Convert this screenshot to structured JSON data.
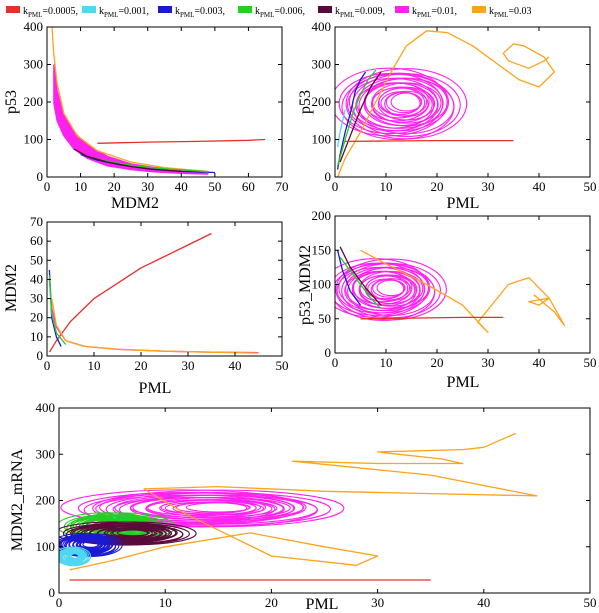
{
  "legend": [
    {
      "k": "k",
      "sub": "PML",
      "value": "=0.0005,",
      "color": "#e8302a"
    },
    {
      "k": "k",
      "sub": "PML",
      "value": "=0.001,",
      "color": "#4fd8f0"
    },
    {
      "k": "k",
      "sub": "PML",
      "value": "=0.003,",
      "color": "#1a1ad6"
    },
    {
      "k": "k",
      "sub": "PML",
      "value": "=0.006,",
      "color": "#22d022"
    },
    {
      "k": "k",
      "sub": "PML",
      "value": "=0.009,",
      "color": "#5a0a3a"
    },
    {
      "k": "k",
      "sub": "PML",
      "value": "=0.01,",
      "color": "#ff22ee"
    },
    {
      "k": "k",
      "sub": "PML",
      "value": "=0.03",
      "color": "#ffa31a"
    }
  ],
  "chart_data": [
    {
      "id": "p1",
      "type": "line",
      "xlabel": "MDM2",
      "ylabel": "p53",
      "xlim": [
        0,
        70
      ],
      "ylim": [
        0,
        400
      ],
      "xticks": [
        "0",
        "10",
        "20",
        "30",
        "40",
        "50",
        "60",
        "70"
      ],
      "yticks": [
        "0",
        "100",
        "200",
        "300",
        "400"
      ],
      "series": [
        {
          "color": "#ff22ee",
          "kind": "band",
          "x": [
            2,
            3,
            5,
            8,
            12,
            18,
            25,
            32,
            40,
            48
          ],
          "y": [
            300,
            230,
            165,
            120,
            85,
            55,
            35,
            25,
            18,
            14
          ],
          "y2": [
            200,
            150,
            110,
            75,
            50,
            30,
            20,
            14,
            10,
            8
          ]
        },
        {
          "color": "#ffa31a",
          "x": [
            1.5,
            2,
            3,
            5,
            9,
            15,
            25,
            35,
            48
          ],
          "y": [
            400,
            330,
            250,
            170,
            110,
            70,
            40,
            25,
            15
          ]
        },
        {
          "color": "#1a1ad6",
          "x": [
            10,
            15,
            22,
            30,
            40,
            50
          ],
          "y": [
            60,
            45,
            32,
            22,
            15,
            12
          ]
        },
        {
          "color": "#22d022",
          "x": [
            12,
            18,
            26,
            35,
            45,
            48
          ],
          "y": [
            55,
            42,
            30,
            22,
            16,
            14
          ]
        },
        {
          "color": "#5a0a3a",
          "x": [
            8,
            12,
            18,
            25,
            32,
            40
          ],
          "y": [
            75,
            55,
            40,
            28,
            20,
            15
          ]
        },
        {
          "color": "#e8302a",
          "x": [
            15,
            30,
            45,
            60,
            65
          ],
          "y": [
            90,
            93,
            95,
            98,
            100
          ]
        }
      ]
    },
    {
      "id": "p2",
      "type": "line",
      "xlabel": "PML",
      "ylabel": "p53",
      "xlim": [
        0,
        50
      ],
      "ylim": [
        0,
        400
      ],
      "xticks": [
        "0",
        "10",
        "20",
        "30",
        "40",
        "50"
      ],
      "yticks": [
        "0",
        "100",
        "200",
        "300",
        "400"
      ],
      "series": [
        {
          "color": "#ff22ee",
          "kind": "cluster",
          "cx": 14,
          "cy": 200,
          "rx": 12,
          "ry": 95
        },
        {
          "color": "#1a1ad6",
          "x": [
            0.5,
            1,
            2,
            3,
            4,
            5,
            6
          ],
          "y": [
            20,
            60,
            120,
            170,
            230,
            260,
            280
          ]
        },
        {
          "color": "#22d022",
          "x": [
            0.5,
            2,
            3.5,
            5,
            6.5,
            8
          ],
          "y": [
            30,
            100,
            170,
            220,
            260,
            285
          ]
        },
        {
          "color": "#5a0a3a",
          "x": [
            1,
            3,
            5,
            7,
            9
          ],
          "y": [
            40,
            110,
            180,
            240,
            280
          ]
        },
        {
          "color": "#4fd8f0",
          "x": [
            0.5,
            1,
            1.5,
            2
          ],
          "y": [
            80,
            120,
            150,
            180
          ]
        },
        {
          "color": "#ffa31a",
          "x": [
            0.5,
            2,
            5,
            8,
            11,
            14,
            18,
            22,
            27,
            32,
            36,
            40,
            43,
            41,
            37,
            35,
            33,
            34,
            38,
            41,
            42
          ],
          "y": [
            0,
            50,
            120,
            200,
            280,
            350,
            390,
            385,
            350,
            300,
            260,
            240,
            280,
            320,
            350,
            355,
            330,
            310,
            290,
            310,
            320
          ]
        },
        {
          "color": "#e8302a",
          "x": [
            2,
            10,
            20,
            30,
            35
          ],
          "y": [
            95,
            96,
            97,
            97,
            97
          ]
        }
      ]
    },
    {
      "id": "p3",
      "type": "line",
      "xlabel": "PML",
      "ylabel": "MDM2",
      "xlim": [
        0,
        50
      ],
      "ylim": [
        0,
        70
      ],
      "xticks": [
        "0",
        "10",
        "20",
        "30",
        "40",
        "50"
      ],
      "yticks": [
        "0",
        "10",
        "20",
        "30",
        "40",
        "50",
        "60",
        "70"
      ],
      "series": [
        {
          "color": "#e8302a",
          "x": [
            0.5,
            2,
            5,
            10,
            15,
            20,
            25,
            30,
            35
          ],
          "y": [
            2,
            8,
            18,
            30,
            38,
            46,
            52,
            58,
            64
          ]
        },
        {
          "color": "#ff22ee",
          "x": [
            0.5,
            1,
            2,
            4,
            8,
            15,
            25,
            35,
            45
          ],
          "y": [
            40,
            25,
            15,
            8,
            5,
            3.5,
            2.5,
            2,
            1.8
          ]
        },
        {
          "color": "#ffa31a",
          "x": [
            1,
            2,
            4,
            8,
            15,
            25,
            35,
            45
          ],
          "y": [
            30,
            16,
            8,
            5,
            3.5,
            2.5,
            2,
            1.5
          ]
        },
        {
          "color": "#1a1ad6",
          "x": [
            0.5,
            1,
            2,
            3
          ],
          "y": [
            45,
            20,
            10,
            5
          ]
        },
        {
          "color": "#22d022",
          "x": [
            0.5,
            1,
            2,
            4
          ],
          "y": [
            42,
            22,
            12,
            6
          ]
        }
      ]
    },
    {
      "id": "p4",
      "type": "line",
      "xlabel": "PML",
      "ylabel": "p53_MDM2",
      "xlim": [
        0,
        50
      ],
      "ylim": [
        0,
        200
      ],
      "xticks": [
        "0",
        "10",
        "20",
        "30",
        "40",
        "50"
      ],
      "yticks": [
        "0",
        "50",
        "100",
        "150",
        "200"
      ],
      "series": [
        {
          "color": "#ff22ee",
          "kind": "cluster",
          "cx": 11,
          "cy": 95,
          "rx": 11,
          "ry": 45
        },
        {
          "color": "#22d022",
          "x": [
            1,
            3,
            5,
            7,
            9
          ],
          "y": [
            140,
            120,
            100,
            80,
            65
          ]
        },
        {
          "color": "#1a1ad6",
          "x": [
            0.5,
            1.5,
            3,
            5
          ],
          "y": [
            150,
            120,
            90,
            70
          ]
        },
        {
          "color": "#5a0a3a",
          "x": [
            1,
            3,
            6,
            9
          ],
          "y": [
            155,
            125,
            95,
            70
          ]
        },
        {
          "color": "#ffa31a",
          "x": [
            5,
            10,
            18,
            25,
            30,
            28,
            34,
            38,
            42,
            40,
            38,
            42,
            45,
            43,
            39
          ],
          "y": [
            150,
            130,
            100,
            70,
            30,
            45,
            100,
            110,
            80,
            70,
            75,
            80,
            40,
            60,
            85
          ]
        },
        {
          "color": "#e8302a",
          "x": [
            5,
            15,
            25,
            33
          ],
          "y": [
            50,
            51,
            52,
            52
          ]
        }
      ]
    },
    {
      "id": "p5",
      "type": "line",
      "xlabel": "PML",
      "ylabel": "MDM2_mRNA",
      "xlim": [
        0,
        50
      ],
      "ylim": [
        0,
        400
      ],
      "xticks": [
        "0",
        "10",
        "20",
        "30",
        "40",
        "50"
      ],
      "yticks": [
        "0",
        "100",
        "200",
        "300",
        "400"
      ],
      "series": [
        {
          "color": "#ff22ee",
          "kind": "cluster",
          "cx": 15,
          "cy": 185,
          "rx": 12,
          "ry": 40
        },
        {
          "color": "#22d022",
          "kind": "cluster",
          "cx": 6,
          "cy": 145,
          "rx": 5,
          "ry": 30
        },
        {
          "color": "#5a0a3a",
          "kind": "cluster",
          "cx": 7,
          "cy": 130,
          "rx": 6,
          "ry": 25
        },
        {
          "color": "#1a1ad6",
          "kind": "cluster",
          "cx": 3,
          "cy": 105,
          "rx": 3,
          "ry": 25
        },
        {
          "color": "#4fd8f0",
          "kind": "cluster",
          "cx": 1.5,
          "cy": 80,
          "rx": 1.5,
          "ry": 20
        },
        {
          "color": "#ffa31a",
          "x": [
            1,
            5,
            10,
            18,
            25,
            30,
            28,
            20,
            12,
            8,
            15,
            25,
            35,
            45,
            35,
            22,
            30,
            38,
            36,
            32,
            30,
            38,
            40,
            43
          ],
          "y": [
            50,
            70,
            100,
            130,
            100,
            80,
            60,
            80,
            170,
            225,
            230,
            220,
            215,
            210,
            255,
            285,
            280,
            280,
            290,
            300,
            305,
            310,
            315,
            345
          ]
        },
        {
          "color": "#e8302a",
          "x": [
            1,
            10,
            20,
            30,
            35
          ],
          "y": [
            28,
            28,
            28,
            28,
            28
          ]
        }
      ]
    }
  ]
}
